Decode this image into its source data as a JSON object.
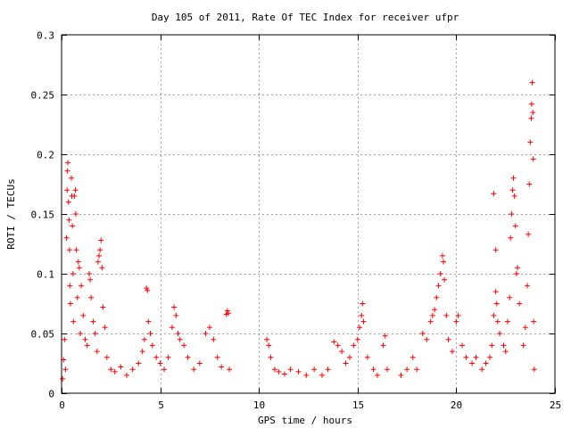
{
  "chart_data": {
    "type": "scatter",
    "title": "Day 105 of 2011, Rate Of TEC Index for receiver ufpr",
    "xlabel": "GPS time / hours",
    "ylabel": "ROTI / TECUs",
    "xlim": [
      0,
      25
    ],
    "ylim": [
      0,
      0.3
    ],
    "xticks": [
      "0",
      "5",
      "10",
      "15",
      "20",
      "25"
    ],
    "xtick_values": [
      0,
      5,
      10,
      15,
      20,
      25
    ],
    "yticks": [
      "0",
      "0.05",
      "0.1",
      "0.15",
      "0.2",
      "0.25",
      "0.3"
    ],
    "ytick_values": [
      0,
      0.05,
      0.1,
      0.15,
      0.2,
      0.25,
      0.3
    ],
    "grid": true,
    "marker": "+",
    "marker_color": "#ff0000",
    "series": [
      {
        "name": "ROTI",
        "points": [
          [
            0.05,
            0.012
          ],
          [
            0.1,
            0.028
          ],
          [
            0.15,
            0.045
          ],
          [
            0.2,
            0.02
          ],
          [
            0.25,
            0.13
          ],
          [
            0.28,
            0.17
          ],
          [
            0.3,
            0.186
          ],
          [
            0.32,
            0.193
          ],
          [
            0.35,
            0.16
          ],
          [
            0.38,
            0.145
          ],
          [
            0.4,
            0.12
          ],
          [
            0.42,
            0.09
          ],
          [
            0.45,
            0.075
          ],
          [
            0.5,
            0.18
          ],
          [
            0.52,
            0.165
          ],
          [
            0.55,
            0.14
          ],
          [
            0.58,
            0.1
          ],
          [
            0.6,
            0.06
          ],
          [
            0.65,
            0.165
          ],
          [
            0.7,
            0.17
          ],
          [
            0.72,
            0.15
          ],
          [
            0.75,
            0.12
          ],
          [
            0.8,
            0.08
          ],
          [
            0.85,
            0.11
          ],
          [
            0.9,
            0.105
          ],
          [
            0.95,
            0.05
          ],
          [
            1.0,
            0.09
          ],
          [
            1.1,
            0.065
          ],
          [
            1.2,
            0.045
          ],
          [
            1.3,
            0.04
          ],
          [
            1.4,
            0.1
          ],
          [
            1.45,
            0.095
          ],
          [
            1.5,
            0.08
          ],
          [
            1.6,
            0.06
          ],
          [
            1.7,
            0.05
          ],
          [
            1.8,
            0.035
          ],
          [
            1.85,
            0.11
          ],
          [
            1.9,
            0.115
          ],
          [
            1.95,
            0.12
          ],
          [
            2.0,
            0.128
          ],
          [
            2.05,
            0.105
          ],
          [
            2.1,
            0.072
          ],
          [
            2.2,
            0.055
          ],
          [
            2.3,
            0.03
          ],
          [
            2.5,
            0.02
          ],
          [
            2.7,
            0.018
          ],
          [
            3.0,
            0.022
          ],
          [
            3.3,
            0.015
          ],
          [
            3.6,
            0.02
          ],
          [
            3.9,
            0.025
          ],
          [
            4.1,
            0.035
          ],
          [
            4.2,
            0.045
          ],
          [
            4.3,
            0.088
          ],
          [
            4.35,
            0.086
          ],
          [
            4.4,
            0.06
          ],
          [
            4.5,
            0.05
          ],
          [
            4.6,
            0.04
          ],
          [
            4.8,
            0.03
          ],
          [
            5.0,
            0.025
          ],
          [
            5.2,
            0.02
          ],
          [
            5.4,
            0.03
          ],
          [
            5.6,
            0.055
          ],
          [
            5.7,
            0.072
          ],
          [
            5.8,
            0.065
          ],
          [
            5.9,
            0.05
          ],
          [
            6.0,
            0.045
          ],
          [
            6.2,
            0.04
          ],
          [
            6.4,
            0.03
          ],
          [
            6.7,
            0.02
          ],
          [
            7.0,
            0.025
          ],
          [
            7.3,
            0.05
          ],
          [
            7.5,
            0.055
          ],
          [
            7.7,
            0.045
          ],
          [
            7.9,
            0.03
          ],
          [
            8.1,
            0.022
          ],
          [
            8.35,
            0.066
          ],
          [
            8.4,
            0.069
          ],
          [
            8.45,
            0.067
          ],
          [
            8.5,
            0.02
          ],
          [
            10.4,
            0.045
          ],
          [
            10.5,
            0.04
          ],
          [
            10.6,
            0.03
          ],
          [
            10.8,
            0.02
          ],
          [
            11.0,
            0.018
          ],
          [
            11.3,
            0.016
          ],
          [
            11.6,
            0.02
          ],
          [
            12.0,
            0.018
          ],
          [
            12.4,
            0.015
          ],
          [
            12.8,
            0.02
          ],
          [
            13.2,
            0.015
          ],
          [
            13.5,
            0.02
          ],
          [
            13.8,
            0.043
          ],
          [
            14.0,
            0.04
          ],
          [
            14.2,
            0.035
          ],
          [
            14.4,
            0.025
          ],
          [
            14.6,
            0.03
          ],
          [
            14.8,
            0.04
          ],
          [
            15.0,
            0.045
          ],
          [
            15.1,
            0.055
          ],
          [
            15.2,
            0.065
          ],
          [
            15.25,
            0.075
          ],
          [
            15.3,
            0.06
          ],
          [
            15.5,
            0.03
          ],
          [
            15.8,
            0.02
          ],
          [
            16.0,
            0.015
          ],
          [
            16.3,
            0.04
          ],
          [
            16.4,
            0.048
          ],
          [
            16.5,
            0.02
          ],
          [
            17.2,
            0.015
          ],
          [
            17.5,
            0.02
          ],
          [
            17.8,
            0.03
          ],
          [
            18.0,
            0.02
          ],
          [
            18.3,
            0.05
          ],
          [
            18.5,
            0.045
          ],
          [
            18.7,
            0.06
          ],
          [
            18.8,
            0.065
          ],
          [
            18.9,
            0.07
          ],
          [
            19.0,
            0.08
          ],
          [
            19.1,
            0.09
          ],
          [
            19.2,
            0.1
          ],
          [
            19.3,
            0.115
          ],
          [
            19.35,
            0.11
          ],
          [
            19.4,
            0.095
          ],
          [
            19.5,
            0.065
          ],
          [
            19.6,
            0.045
          ],
          [
            19.8,
            0.035
          ],
          [
            20.0,
            0.06
          ],
          [
            20.1,
            0.065
          ],
          [
            20.3,
            0.04
          ],
          [
            20.5,
            0.03
          ],
          [
            20.8,
            0.025
          ],
          [
            21.0,
            0.03
          ],
          [
            21.3,
            0.02
          ],
          [
            21.5,
            0.025
          ],
          [
            21.7,
            0.03
          ],
          [
            21.8,
            0.04
          ],
          [
            21.9,
            0.065
          ],
          [
            22.0,
            0.085
          ],
          [
            22.05,
            0.075
          ],
          [
            22.1,
            0.06
          ],
          [
            22.2,
            0.05
          ],
          [
            22.4,
            0.04
          ],
          [
            22.5,
            0.035
          ],
          [
            22.6,
            0.06
          ],
          [
            22.7,
            0.08
          ],
          [
            22.75,
            0.13
          ],
          [
            22.8,
            0.15
          ],
          [
            22.85,
            0.17
          ],
          [
            22.9,
            0.18
          ],
          [
            22.95,
            0.165
          ],
          [
            23.0,
            0.14
          ],
          [
            23.05,
            0.1
          ],
          [
            23.1,
            0.105
          ],
          [
            23.2,
            0.075
          ],
          [
            23.4,
            0.04
          ],
          [
            23.5,
            0.055
          ],
          [
            23.6,
            0.09
          ],
          [
            23.65,
            0.133
          ],
          [
            23.7,
            0.175
          ],
          [
            23.75,
            0.21
          ],
          [
            23.8,
            0.23
          ],
          [
            23.82,
            0.242
          ],
          [
            23.85,
            0.26
          ],
          [
            23.88,
            0.235
          ],
          [
            23.9,
            0.196
          ],
          [
            23.92,
            0.06
          ],
          [
            23.95,
            0.02
          ],
          [
            21.9,
            0.167
          ],
          [
            22.0,
            0.12
          ]
        ]
      }
    ]
  }
}
